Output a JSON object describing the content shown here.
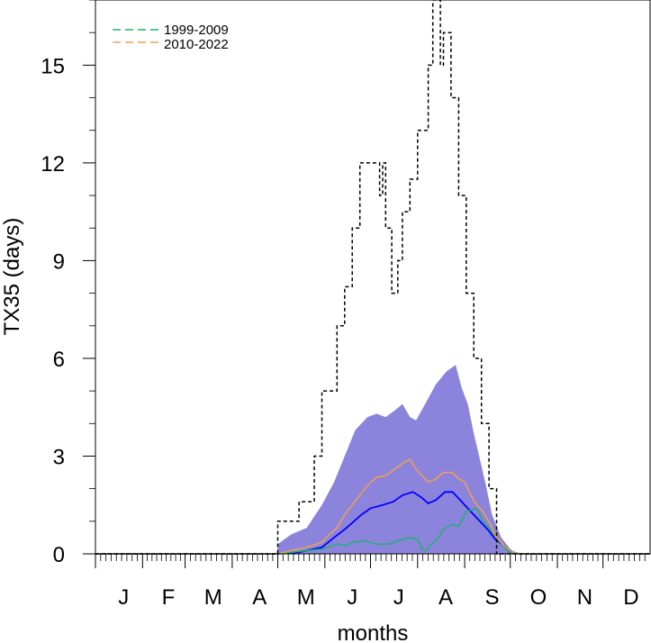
{
  "chart_data": {
    "type": "line",
    "xlabel": "months",
    "ylabel": "TX35 (days)",
    "categories": [
      "J",
      "F",
      "M",
      "A",
      "M",
      "J",
      "J",
      "A",
      "S",
      "O",
      "N",
      "D"
    ],
    "xlim": [
      1,
      366
    ],
    "ylim": [
      0,
      17
    ],
    "yticks": [
      "0",
      "3",
      "6",
      "9",
      "12",
      "15"
    ],
    "grid": false,
    "legend_position": "top-left",
    "legend": [
      {
        "label": "1999-2009",
        "color": "#20b070",
        "dash": true
      },
      {
        "label": "2010-2022",
        "color": "#f0a050",
        "dash": true
      }
    ],
    "series": [
      {
        "name": "1999-2009",
        "style": "dashed-in-legend",
        "color": "#20b070",
        "points": [
          [
            1,
            0
          ],
          [
            121,
            0
          ],
          [
            130,
            0.05
          ],
          [
            150,
            0.15
          ],
          [
            160,
            0.3
          ],
          [
            166,
            0.25
          ],
          [
            170,
            0.35
          ],
          [
            178,
            0.4
          ],
          [
            185,
            0.3
          ],
          [
            195,
            0.3
          ],
          [
            200,
            0.4
          ],
          [
            208,
            0.5
          ],
          [
            213,
            0.45
          ],
          [
            216,
            0.15
          ],
          [
            219,
            0.1
          ],
          [
            222,
            0.3
          ],
          [
            226,
            0.45
          ],
          [
            230,
            0.75
          ],
          [
            236,
            0.9
          ],
          [
            240,
            0.85
          ],
          [
            245,
            1.3
          ],
          [
            252,
            1.4
          ],
          [
            256,
            1.0
          ],
          [
            260,
            0.8
          ],
          [
            264,
            0.55
          ],
          [
            270,
            0.2
          ],
          [
            273,
            0.05
          ],
          [
            276,
            0
          ],
          [
            366,
            0
          ]
        ]
      },
      {
        "name": "2010-2022",
        "style": "dashed-in-legend",
        "color": "#f0a050",
        "points": [
          [
            1,
            0
          ],
          [
            121,
            0
          ],
          [
            130,
            0.1
          ],
          [
            140,
            0.2
          ],
          [
            150,
            0.35
          ],
          [
            155,
            0.6
          ],
          [
            160,
            0.8
          ],
          [
            165,
            1.2
          ],
          [
            170,
            1.5
          ],
          [
            175,
            1.8
          ],
          [
            180,
            2.1
          ],
          [
            186,
            2.35
          ],
          [
            192,
            2.4
          ],
          [
            198,
            2.6
          ],
          [
            204,
            2.8
          ],
          [
            208,
            2.9
          ],
          [
            212,
            2.6
          ],
          [
            216,
            2.4
          ],
          [
            220,
            2.2
          ],
          [
            225,
            2.3
          ],
          [
            230,
            2.5
          ],
          [
            236,
            2.5
          ],
          [
            240,
            2.3
          ],
          [
            244,
            2.2
          ],
          [
            248,
            1.8
          ],
          [
            252,
            1.5
          ],
          [
            256,
            1.3
          ],
          [
            261,
            0.9
          ],
          [
            265,
            0.5
          ],
          [
            270,
            0.25
          ],
          [
            276,
            0.05
          ],
          [
            280,
            0
          ],
          [
            366,
            0
          ]
        ]
      },
      {
        "name": "",
        "style": "solid",
        "color": "#0000ff",
        "points": [
          [
            1,
            0
          ],
          [
            121,
            0
          ],
          [
            135,
            0.05
          ],
          [
            150,
            0.2
          ],
          [
            158,
            0.5
          ],
          [
            165,
            0.75
          ],
          [
            170,
            0.95
          ],
          [
            176,
            1.2
          ],
          [
            182,
            1.4
          ],
          [
            190,
            1.5
          ],
          [
            197,
            1.6
          ],
          [
            203,
            1.8
          ],
          [
            210,
            1.9
          ],
          [
            215,
            1.75
          ],
          [
            220,
            1.55
          ],
          [
            225,
            1.65
          ],
          [
            231,
            1.9
          ],
          [
            236,
            1.9
          ],
          [
            240,
            1.7
          ],
          [
            245,
            1.45
          ],
          [
            250,
            1.2
          ],
          [
            255,
            0.95
          ],
          [
            260,
            0.7
          ],
          [
            264,
            0.45
          ],
          [
            270,
            0.25
          ],
          [
            276,
            0.05
          ],
          [
            280,
            0
          ],
          [
            366,
            0
          ]
        ]
      },
      {
        "name": "",
        "style": "dotted",
        "color": "#000000",
        "points": [
          [
            1,
            0
          ],
          [
            121,
            0
          ],
          [
            121,
            1
          ],
          [
            135,
            1
          ],
          [
            135,
            1.6
          ],
          [
            145,
            1.6
          ],
          [
            145,
            3
          ],
          [
            150,
            3
          ],
          [
            150,
            5
          ],
          [
            160,
            5
          ],
          [
            160,
            7
          ],
          [
            165,
            7
          ],
          [
            165,
            8.2
          ],
          [
            170,
            8.2
          ],
          [
            170,
            10
          ],
          [
            175,
            10
          ],
          [
            175,
            12
          ],
          [
            188,
            12
          ],
          [
            188,
            11
          ],
          [
            190,
            11
          ],
          [
            190,
            12
          ],
          [
            192,
            12
          ],
          [
            192,
            10
          ],
          [
            196,
            10
          ],
          [
            196,
            8
          ],
          [
            200,
            8
          ],
          [
            200,
            9
          ],
          [
            203,
            9
          ],
          [
            203,
            10.5
          ],
          [
            208,
            10.5
          ],
          [
            208,
            11.5
          ],
          [
            213,
            11.5
          ],
          [
            213,
            13
          ],
          [
            220,
            13
          ],
          [
            220,
            15
          ],
          [
            223,
            15
          ],
          [
            223,
            17
          ],
          [
            228,
            17
          ],
          [
            228,
            15
          ],
          [
            230,
            15
          ],
          [
            230,
            16
          ],
          [
            235,
            16
          ],
          [
            235,
            14
          ],
          [
            240,
            14
          ],
          [
            240,
            11
          ],
          [
            245,
            11
          ],
          [
            245,
            8
          ],
          [
            250,
            8
          ],
          [
            250,
            6
          ],
          [
            255,
            6
          ],
          [
            255,
            4
          ],
          [
            260,
            4
          ],
          [
            260,
            2
          ],
          [
            265,
            2
          ],
          [
            265,
            0
          ],
          [
            366,
            0
          ]
        ]
      }
    ],
    "band": {
      "color": "#8c84dc",
      "upper": [
        [
          121,
          0.3
        ],
        [
          130,
          0.6
        ],
        [
          140,
          0.8
        ],
        [
          150,
          1.5
        ],
        [
          158,
          2.2
        ],
        [
          165,
          3.0
        ],
        [
          172,
          3.8
        ],
        [
          180,
          4.2
        ],
        [
          186,
          4.3
        ],
        [
          192,
          4.2
        ],
        [
          198,
          4.4
        ],
        [
          203,
          4.6
        ],
        [
          208,
          4.2
        ],
        [
          212,
          4.1
        ],
        [
          218,
          4.6
        ],
        [
          225,
          5.2
        ],
        [
          232,
          5.6
        ],
        [
          238,
          5.8
        ],
        [
          242,
          5.1
        ],
        [
          246,
          4.6
        ],
        [
          250,
          3.7
        ],
        [
          254,
          2.9
        ],
        [
          258,
          2.1
        ],
        [
          262,
          1.2
        ],
        [
          268,
          0.5
        ],
        [
          274,
          0.15
        ],
        [
          278,
          0
        ]
      ],
      "lower": [
        [
          121,
          0
        ],
        [
          278,
          0
        ]
      ]
    }
  }
}
